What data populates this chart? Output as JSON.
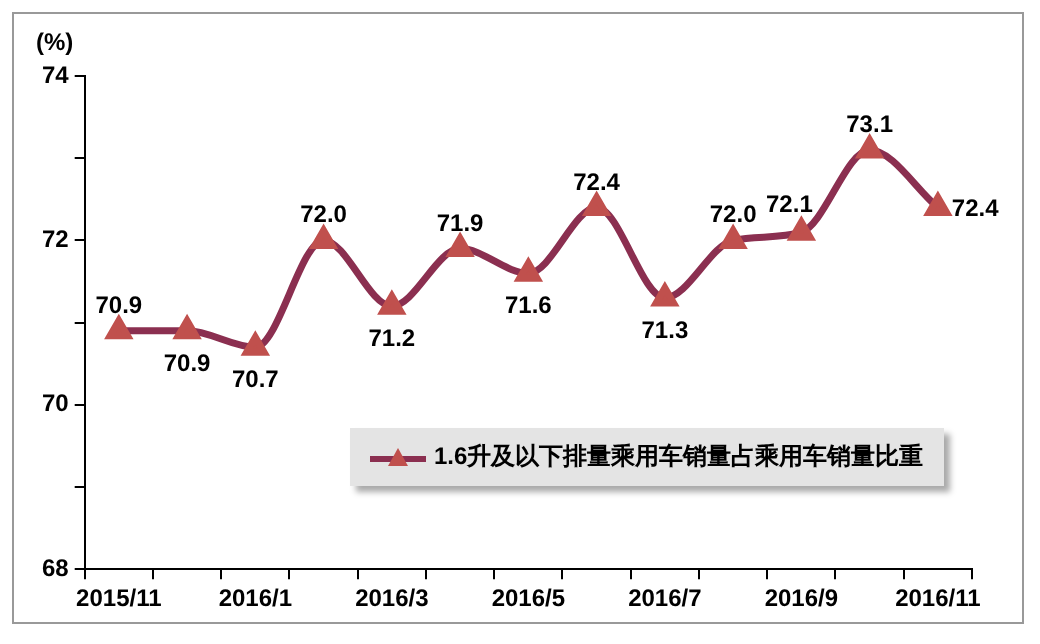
{
  "chart_data": {
    "type": "line",
    "ylabel": "(%)",
    "categories": [
      "2015/11",
      null,
      "2016/1",
      null,
      "2016/3",
      null,
      "2016/5",
      null,
      "2016/7",
      null,
      "2016/9",
      null,
      "2016/11"
    ],
    "series": [
      {
        "name": "1.6升及以下排量乘用车销量占乘用车销量比重",
        "color": "#8b2f50",
        "values": [
          70.9,
          70.9,
          70.7,
          72.0,
          71.2,
          71.9,
          71.6,
          72.4,
          71.3,
          72.0,
          72.1,
          73.1,
          72.4
        ],
        "value_labels": [
          "70.9",
          "70.9",
          "70.7",
          "72.0",
          "71.2",
          "71.9",
          "71.6",
          "72.4",
          "71.3",
          "72.0",
          "72.1",
          "73.1",
          "72.4"
        ]
      }
    ],
    "ylim": [
      68,
      74
    ],
    "yticks": [
      68,
      {
        "value": 69,
        "label": null
      },
      70,
      {
        "value": 71,
        "label": null
      },
      72,
      {
        "value": 73,
        "label": null
      },
      74
    ],
    "grid": false,
    "legend": "bottom right",
    "marker": "triangle",
    "line_style": "solid"
  }
}
